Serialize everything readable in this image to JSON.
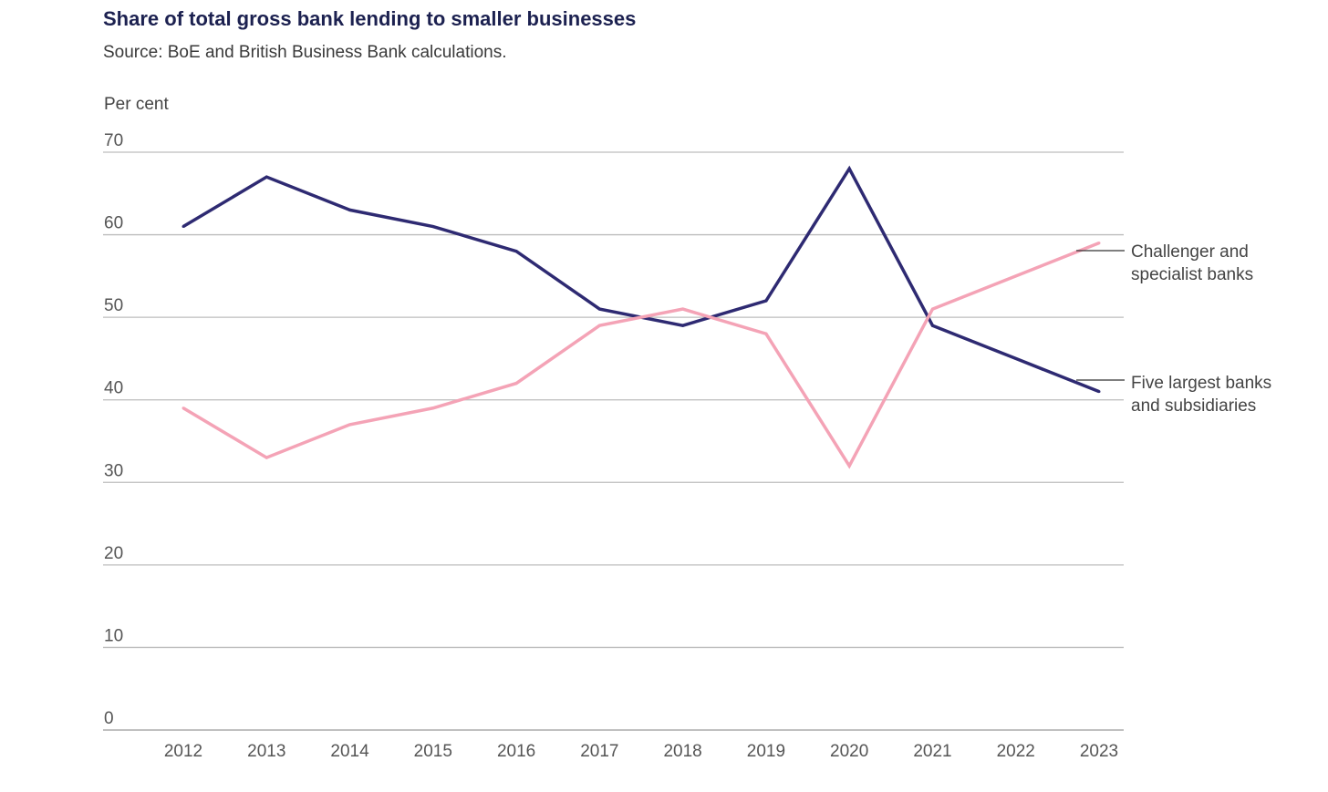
{
  "header": {
    "title": "Share of total gross bank lending to smaller businesses",
    "source": "Source: BoE and British Business Bank calculations."
  },
  "chart_data": {
    "type": "line",
    "title": "Share of total gross bank lending to smaller businesses",
    "subtitle": "Source: BoE and British Business Bank calculations.",
    "xlabel": "",
    "ylabel": "Per cent",
    "ylim": [
      0,
      70
    ],
    "yticks": [
      "0",
      "10",
      "20",
      "30",
      "40",
      "50",
      "60",
      "70"
    ],
    "categories": [
      "2012",
      "2013",
      "2014",
      "2015",
      "2016",
      "2017",
      "2018",
      "2019",
      "2020",
      "2021",
      "2022",
      "2023"
    ],
    "grid": true,
    "legend_position": "right, inline labels",
    "series": [
      {
        "name": "Five largest banks and subsidiaries",
        "label_lines": [
          "Five largest banks",
          "and subsidiaries"
        ],
        "color": "#2e2a72",
        "values": [
          61,
          67,
          63,
          61,
          58,
          51,
          49,
          52,
          68,
          49,
          45,
          41
        ]
      },
      {
        "name": "Challenger and specialist banks",
        "label_lines": [
          "Challenger and",
          "specialist banks"
        ],
        "color": "#f4a3b6",
        "values": [
          39,
          33,
          37,
          39,
          42,
          49,
          51,
          48,
          32,
          51,
          55,
          59
        ]
      }
    ]
  }
}
